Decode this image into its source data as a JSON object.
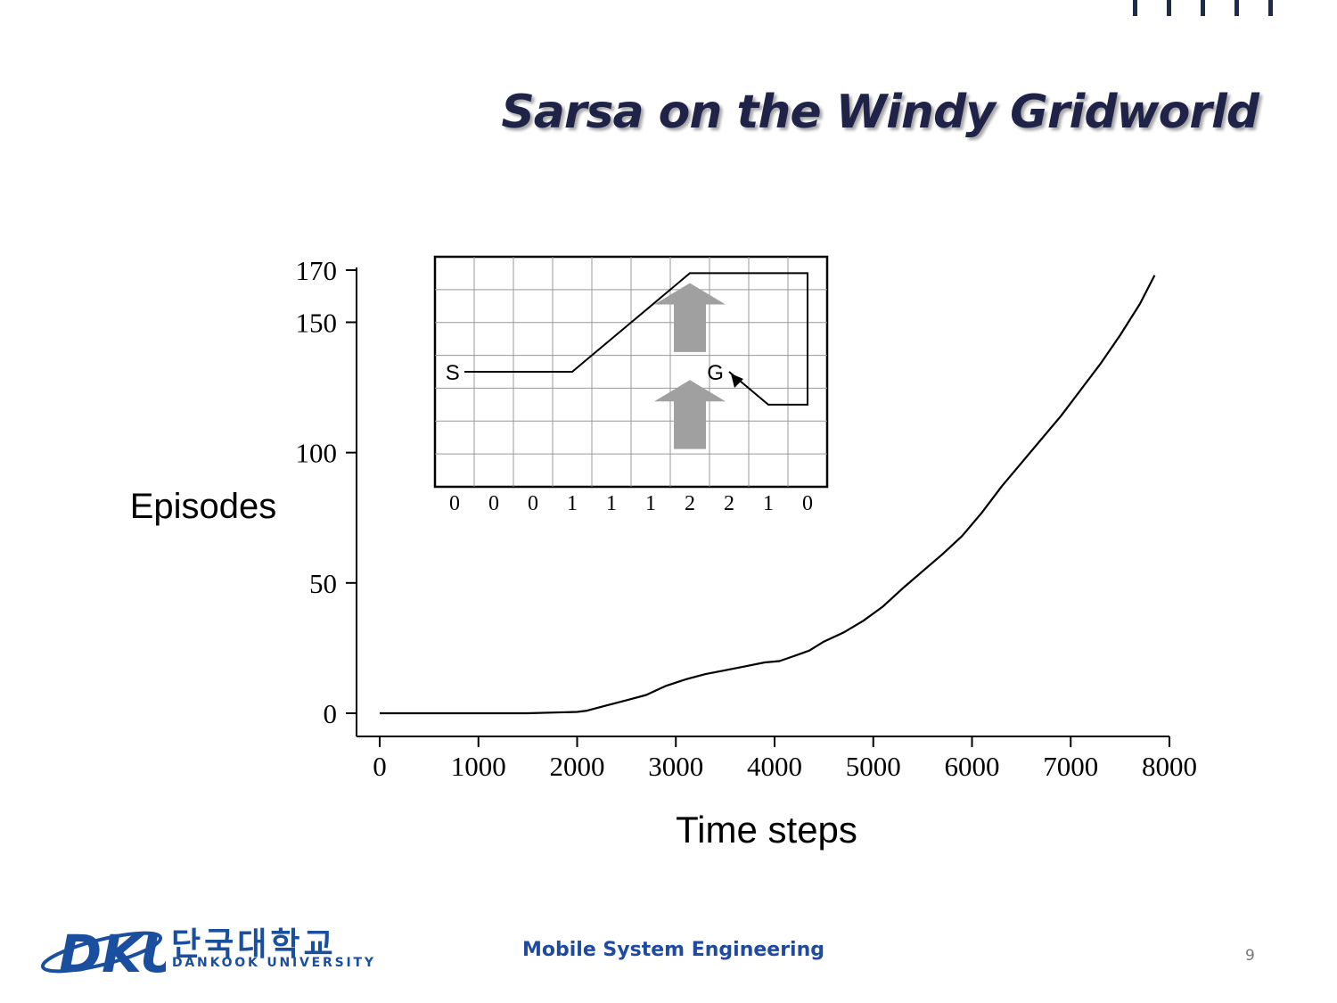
{
  "slide": {
    "title": "Sarsa on the Windy Gridworld",
    "footer_course": "Mobile System Engineering",
    "page_number": "9"
  },
  "logo": {
    "mark_text": "DKU",
    "korean_name": "단국대학교",
    "english_name": "DANKOOK UNIVERSITY"
  },
  "colors": {
    "title": "#1e2347",
    "footer": "#1f4aa0",
    "logo": "#1a4fa0",
    "wind_arrow": "#a0a0a0"
  },
  "chart_data": [
    {
      "type": "line",
      "title": "",
      "xlabel": "Time steps",
      "ylabel": "Episodes",
      "xlim": [
        0,
        8000
      ],
      "ylim": [
        0,
        170
      ],
      "xticks": [
        0,
        1000,
        2000,
        3000,
        4000,
        5000,
        6000,
        7000,
        8000
      ],
      "yticks": [
        0,
        50,
        100,
        150,
        170
      ],
      "grid": false,
      "series": [
        {
          "x": [
            0,
            1500,
            2000,
            2100,
            2300,
            2500,
            2700,
            2900,
            3100,
            3300,
            3500,
            3700,
            3900,
            4050,
            4200,
            4350,
            4500,
            4700,
            4900,
            5100,
            5300,
            5500,
            5700,
            5900,
            6100,
            6300,
            6500,
            6700,
            6900,
            7100,
            7300,
            7500,
            7700,
            7850
          ],
          "y": [
            0,
            0,
            0.5,
            1,
            3,
            5,
            7,
            10.5,
            13,
            15,
            16.5,
            18,
            19.5,
            20,
            22,
            24,
            27.5,
            31,
            35.5,
            41,
            48,
            54.5,
            61,
            68,
            77,
            87,
            96,
            105,
            114,
            124,
            134,
            145,
            157,
            168
          ]
        }
      ]
    },
    {
      "type": "grid-diagram",
      "columns": 10,
      "rows": 7,
      "start_label": "S",
      "goal_label": "G",
      "wind_strength": [
        0,
        0,
        0,
        1,
        1,
        1,
        2,
        2,
        1,
        0
      ],
      "path_cells": [
        [
          0,
          3
        ],
        [
          1,
          3
        ],
        [
          2,
          3
        ],
        [
          3,
          3
        ],
        [
          4,
          2
        ],
        [
          5,
          1
        ],
        [
          6,
          0
        ],
        [
          7,
          0
        ],
        [
          8,
          0
        ],
        [
          9,
          0
        ],
        [
          9,
          1
        ],
        [
          9,
          2
        ],
        [
          9,
          3
        ],
        [
          9,
          4
        ],
        [
          8,
          4
        ],
        [
          7,
          3
        ]
      ]
    }
  ]
}
